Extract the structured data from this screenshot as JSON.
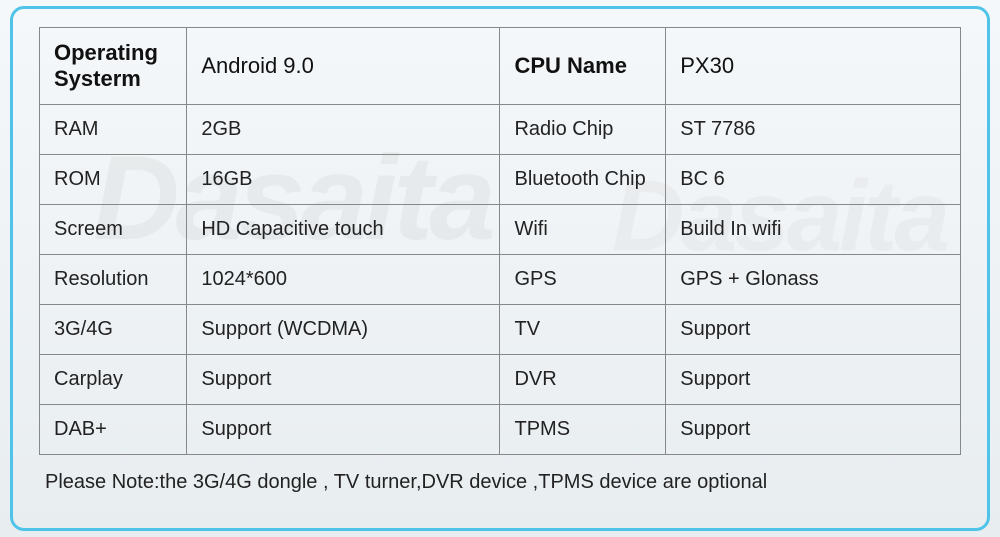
{
  "table": {
    "border_color": "#888888",
    "frame_color": "#4fc4e8",
    "text_color": "#222222",
    "header_fontsize": 22,
    "cell_fontsize": 20,
    "columns": [
      "label_left",
      "value_left",
      "label_right",
      "value_right"
    ],
    "header": {
      "label_left": "Operating Systerm",
      "value_left": "Android 9.0",
      "label_right": "CPU Name",
      "value_right": "PX30"
    },
    "rows": [
      {
        "label_left": "RAM",
        "value_left": "2GB",
        "label_right": "Radio Chip",
        "value_right": "ST 7786"
      },
      {
        "label_left": "ROM",
        "value_left": "16GB",
        "label_right": "Bluetooth Chip",
        "value_right": "BC 6"
      },
      {
        "label_left": "Screem",
        "value_left": "HD Capacitive touch",
        "label_right": "Wifi",
        "value_right": "Build In wifi"
      },
      {
        "label_left": "Resolution",
        "value_left": "1024*600",
        "label_right": "GPS",
        "value_right": "GPS + Glonass"
      },
      {
        "label_left": "3G/4G",
        "value_left": "Support (WCDMA)",
        "label_right": "TV",
        "value_right": "Support"
      },
      {
        "label_left": "Carplay",
        "value_left": "Support",
        "label_right": "DVR",
        "value_right": "Support"
      },
      {
        "label_left": "DAB+",
        "value_left": "Support",
        "label_right": "TPMS",
        "value_right": "Support"
      }
    ]
  },
  "note": "Please Note:the 3G/4G dongle , TV turner,DVR device ,TPMS device are optional",
  "watermark_text": "Dasaita"
}
